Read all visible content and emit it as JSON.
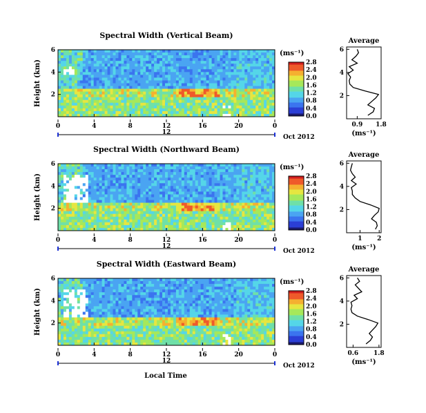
{
  "chart_data": {
    "type": "heatmap",
    "xlabel": "Local Time",
    "date_label": "Oct 2012",
    "day_marker": "12",
    "x_ticks": [
      "0",
      "4",
      "8",
      "12",
      "16",
      "20",
      "0"
    ],
    "y_label": "Height (km)",
    "y_ticks": [
      "2",
      "4",
      "6"
    ],
    "colorbar_unit": "(ms⁻¹)",
    "avg_xlabel": "(ms⁻¹)",
    "avg_title": "Average",
    "colorscale": [
      "#1a1a6e",
      "#2b3fd6",
      "#3b74ef",
      "#4aa4f2",
      "#55d6e8",
      "#6fe0a8",
      "#a6e85a",
      "#e6e640",
      "#f5b030",
      "#ef5a2a",
      "#d01e1e"
    ],
    "panels": [
      {
        "title": "Spectral Width (Vertical Beam)",
        "colorbar_ticks": [
          "0.0",
          "0.4",
          "0.8",
          "1.2",
          "1.6",
          "2.0",
          "2.4",
          "2.8"
        ],
        "avg_xticks": [
          "0.9",
          "1.8"
        ],
        "avg_xrange": [
          0.5,
          1.8
        ],
        "avg_profile": {
          "height_km": [
            0.3,
            0.6,
            0.9,
            1.2,
            1.5,
            1.8,
            2.1,
            2.4,
            2.7,
            3.0,
            3.3,
            3.6,
            3.9,
            4.2,
            4.5,
            4.8,
            5.1,
            5.4,
            5.7,
            6.0
          ],
          "value": [
            1.3,
            1.5,
            1.55,
            1.3,
            1.45,
            1.6,
            1.7,
            1.2,
            0.75,
            0.62,
            0.6,
            0.65,
            0.55,
            0.75,
            0.6,
            0.9,
            0.7,
            0.85,
            0.95,
            0.9
          ]
        }
      },
      {
        "title": "Spectral Width (Northward Beam)",
        "colorbar_ticks": [
          "0.0",
          "0.4",
          "0.8",
          "1.2",
          "1.6",
          "2.0",
          "2.4",
          "2.8"
        ],
        "avg_xticks": [
          "1",
          "2"
        ],
        "avg_xrange": [
          0.3,
          2.1
        ],
        "avg_profile": {
          "height_km": [
            0.3,
            0.6,
            0.9,
            1.2,
            1.5,
            1.8,
            2.1,
            2.4,
            2.7,
            3.0,
            3.3,
            3.6,
            3.9,
            4.2,
            4.5,
            4.8,
            5.1,
            5.4,
            5.7,
            6.0
          ],
          "value": [
            1.8,
            1.9,
            1.85,
            1.6,
            1.75,
            1.95,
            2.0,
            1.55,
            1.0,
            0.75,
            0.6,
            0.6,
            0.55,
            0.8,
            0.55,
            0.75,
            0.6,
            0.5,
            0.55,
            0.6
          ]
        }
      },
      {
        "title": "Spectral Width (Eastward Beam)",
        "colorbar_ticks": [
          "0.0",
          "0.4",
          "0.8",
          "1.2",
          "1.6",
          "2.0",
          "2.4",
          "2.8"
        ],
        "avg_xticks": [
          "0.6",
          "1.8"
        ],
        "avg_xrange": [
          0.3,
          1.9
        ],
        "avg_profile": {
          "height_km": [
            0.3,
            0.6,
            0.9,
            1.2,
            1.5,
            1.8,
            2.1,
            2.4,
            2.7,
            3.0,
            3.3,
            3.6,
            3.9,
            4.2,
            4.5,
            4.8,
            5.1,
            5.4,
            5.7,
            6.0
          ],
          "value": [
            1.2,
            1.4,
            1.5,
            1.35,
            1.5,
            1.65,
            1.75,
            1.3,
            0.8,
            0.55,
            0.5,
            0.55,
            0.5,
            0.8,
            0.65,
            1.0,
            0.85,
            0.7,
            0.9,
            0.8
          ]
        }
      }
    ]
  }
}
